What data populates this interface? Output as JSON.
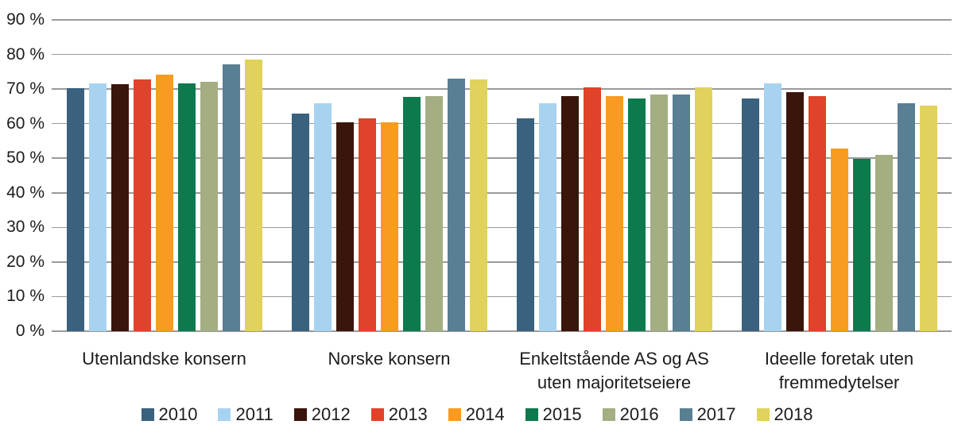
{
  "chart_data": {
    "type": "bar",
    "title": "",
    "categories": [
      "Utenlandske konsern",
      "Norske konsern",
      "Enkeltstående AS og AS\nuten majoritetseiere",
      "Ideelle foretak uten\nfremmedytelser"
    ],
    "series": [
      {
        "name": "2010",
        "color": "#3A617E",
        "values": [
          70.3,
          62.9,
          61.6,
          67.3
        ]
      },
      {
        "name": "2011",
        "color": "#A8D3F0",
        "values": [
          71.6,
          65.9,
          65.9,
          71.7
        ]
      },
      {
        "name": "2012",
        "color": "#3A150B",
        "values": [
          71.5,
          60.4,
          67.9,
          69.2
        ]
      },
      {
        "name": "2013",
        "color": "#E0422A",
        "values": [
          72.8,
          61.6,
          70.5,
          68.0
        ]
      },
      {
        "name": "2014",
        "color": "#F79C20",
        "values": [
          74.1,
          60.4,
          67.9,
          52.9
        ]
      },
      {
        "name": "2015",
        "color": "#0C7A4C",
        "values": [
          71.6,
          67.8,
          67.2,
          49.8
        ]
      },
      {
        "name": "2016",
        "color": "#A3AE82",
        "values": [
          72.2,
          67.9,
          68.4,
          51.0
        ]
      },
      {
        "name": "2017",
        "color": "#597F93",
        "values": [
          77.2,
          72.9,
          68.4,
          66.0
        ]
      },
      {
        "name": "2018",
        "color": "#E0D25C",
        "values": [
          78.5,
          72.7,
          70.4,
          65.3
        ]
      }
    ],
    "ylim": [
      0,
      90
    ],
    "yticks": [
      0,
      10,
      20,
      30,
      40,
      50,
      60,
      70,
      80,
      90
    ],
    "ytick_labels": [
      "0 %",
      "10 %",
      "20 %",
      "30 %",
      "40 %",
      "50 %",
      "60 %",
      "70 %",
      "80 %",
      "90 %"
    ],
    "grid": true,
    "legend_position": "bottom"
  },
  "colors": {
    "background": "#FFFFFF",
    "gridline": "#9A9A9A",
    "text": "#1C1C1C"
  }
}
